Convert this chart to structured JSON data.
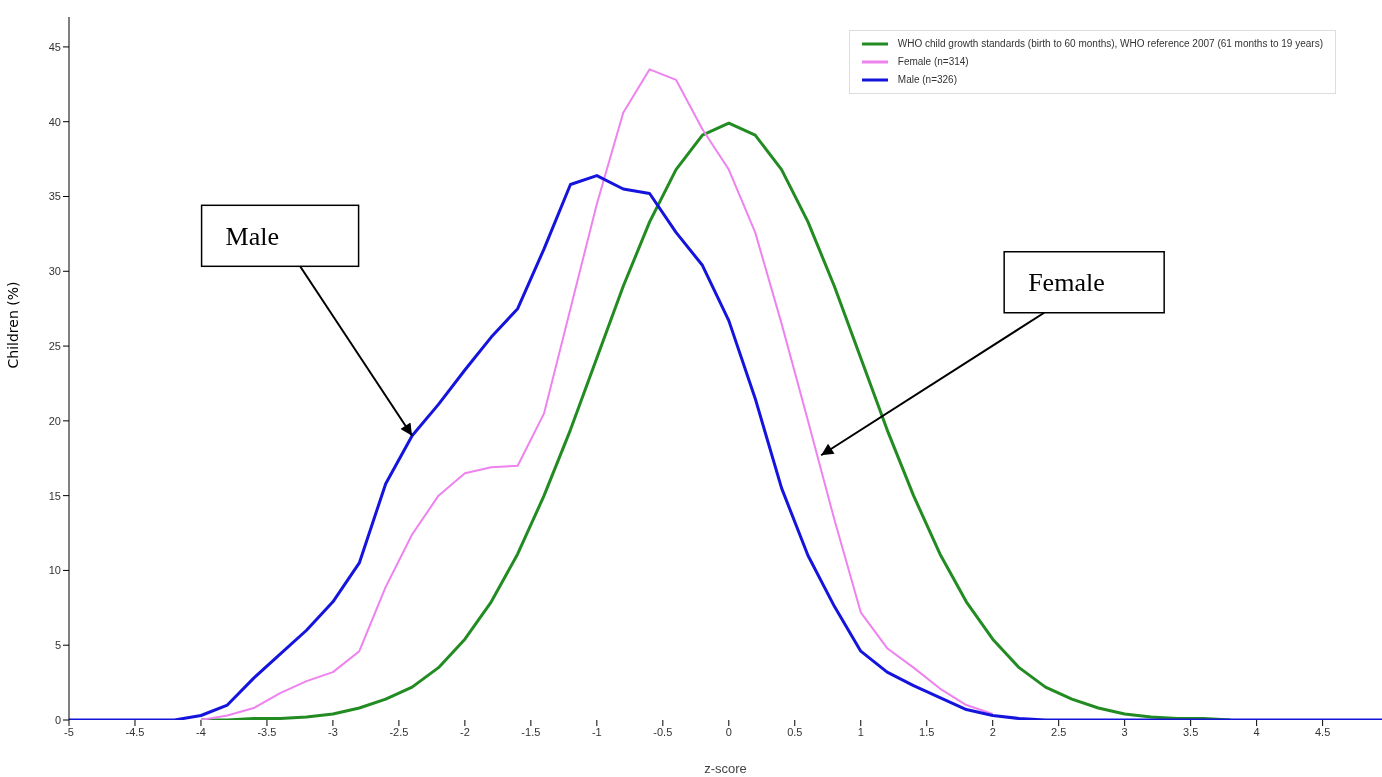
{
  "chart_data": {
    "type": "line",
    "xlabel": "z-score",
    "ylabel": "Children (%)",
    "x": [
      -5,
      -4.8,
      -4.6,
      -4.4,
      -4.2,
      -4,
      -3.8,
      -3.6,
      -3.4,
      -3.2,
      -3,
      -2.8,
      -2.6,
      -2.4,
      -2.2,
      -2,
      -1.8,
      -1.6,
      -1.4,
      -1.2,
      -1,
      -0.8,
      -0.6,
      -0.4,
      -0.2,
      0,
      0.2,
      0.4,
      0.6,
      0.8,
      1,
      1.2,
      1.4,
      1.6,
      1.8,
      2,
      2.2,
      2.4,
      2.6,
      2.8,
      3,
      3.2,
      3.4,
      3.6,
      3.8,
      4,
      4.2,
      4.4,
      4.6,
      4.8,
      4.95
    ],
    "series": [
      {
        "name": "WHO child growth standards (birth to 60 months), WHO reference 2007 (61 months to 19 years)",
        "color": "#228b22",
        "values": [
          null,
          null,
          null,
          null,
          null,
          0,
          0,
          0.1,
          0.1,
          0.2,
          0.4,
          0.8,
          1.4,
          2.2,
          3.5,
          5.4,
          7.9,
          11.1,
          15,
          19.4,
          24.2,
          29,
          33.3,
          36.8,
          39.1,
          39.9,
          39.1,
          36.8,
          33.3,
          29,
          24.2,
          19.4,
          15,
          11.1,
          7.9,
          5.4,
          3.5,
          2.2,
          1.4,
          0.8,
          0.4,
          0.2,
          0.1,
          0.1,
          0,
          null,
          null,
          null,
          null,
          null,
          null
        ]
      },
      {
        "name": "Female (n=314)",
        "color": "#ee82ee",
        "values": [
          null,
          null,
          null,
          null,
          null,
          0,
          0.3,
          0.8,
          1.8,
          2.6,
          3.2,
          4.6,
          8.9,
          12.4,
          15,
          16.5,
          16.9,
          17,
          20.5,
          27.5,
          34.5,
          40.6,
          43.5,
          42.8,
          39.5,
          36.8,
          32.6,
          26.5,
          20,
          13.4,
          7.2,
          4.8,
          3.5,
          2.1,
          1,
          0.4,
          null,
          null,
          null,
          null,
          null,
          null,
          null,
          null,
          null,
          null,
          null,
          null,
          null,
          null,
          null
        ]
      },
      {
        "name": "Male (n=326)",
        "color": "#1414dc",
        "values": [
          0,
          0,
          0,
          0,
          0,
          0.3,
          1,
          2.8,
          4.4,
          6,
          7.9,
          10.5,
          15.8,
          19,
          21.1,
          23.4,
          25.6,
          27.5,
          31.5,
          35.8,
          36.4,
          35.5,
          35.2,
          32.6,
          30.4,
          26.7,
          21.5,
          15.5,
          11,
          7.6,
          4.6,
          3.2,
          2.3,
          1.5,
          0.7,
          0.3,
          0.1,
          0,
          0,
          0,
          0,
          0,
          0,
          0,
          0,
          0,
          0,
          0,
          0,
          0,
          0
        ]
      }
    ],
    "xlim": [
      -5,
      4.95
    ],
    "xticks": [
      -5,
      -4.5,
      -4,
      -3.5,
      -3,
      -2.5,
      -2,
      -1.5,
      -1,
      -0.5,
      0,
      0.5,
      1,
      1.5,
      2,
      2.5,
      3,
      3.5,
      4,
      4.5
    ],
    "ylim": [
      0,
      47
    ],
    "yticks": [
      0,
      5,
      10,
      15,
      20,
      25,
      30,
      35,
      40,
      45
    ],
    "annotations": [
      {
        "text": "Male",
        "x": -2.4,
        "y": 19
      },
      {
        "text": "Female",
        "x": 0.7,
        "y": 17.7
      }
    ],
    "legend": "top right",
    "grid": false,
    "marker": "none",
    "line_style": "solid"
  }
}
